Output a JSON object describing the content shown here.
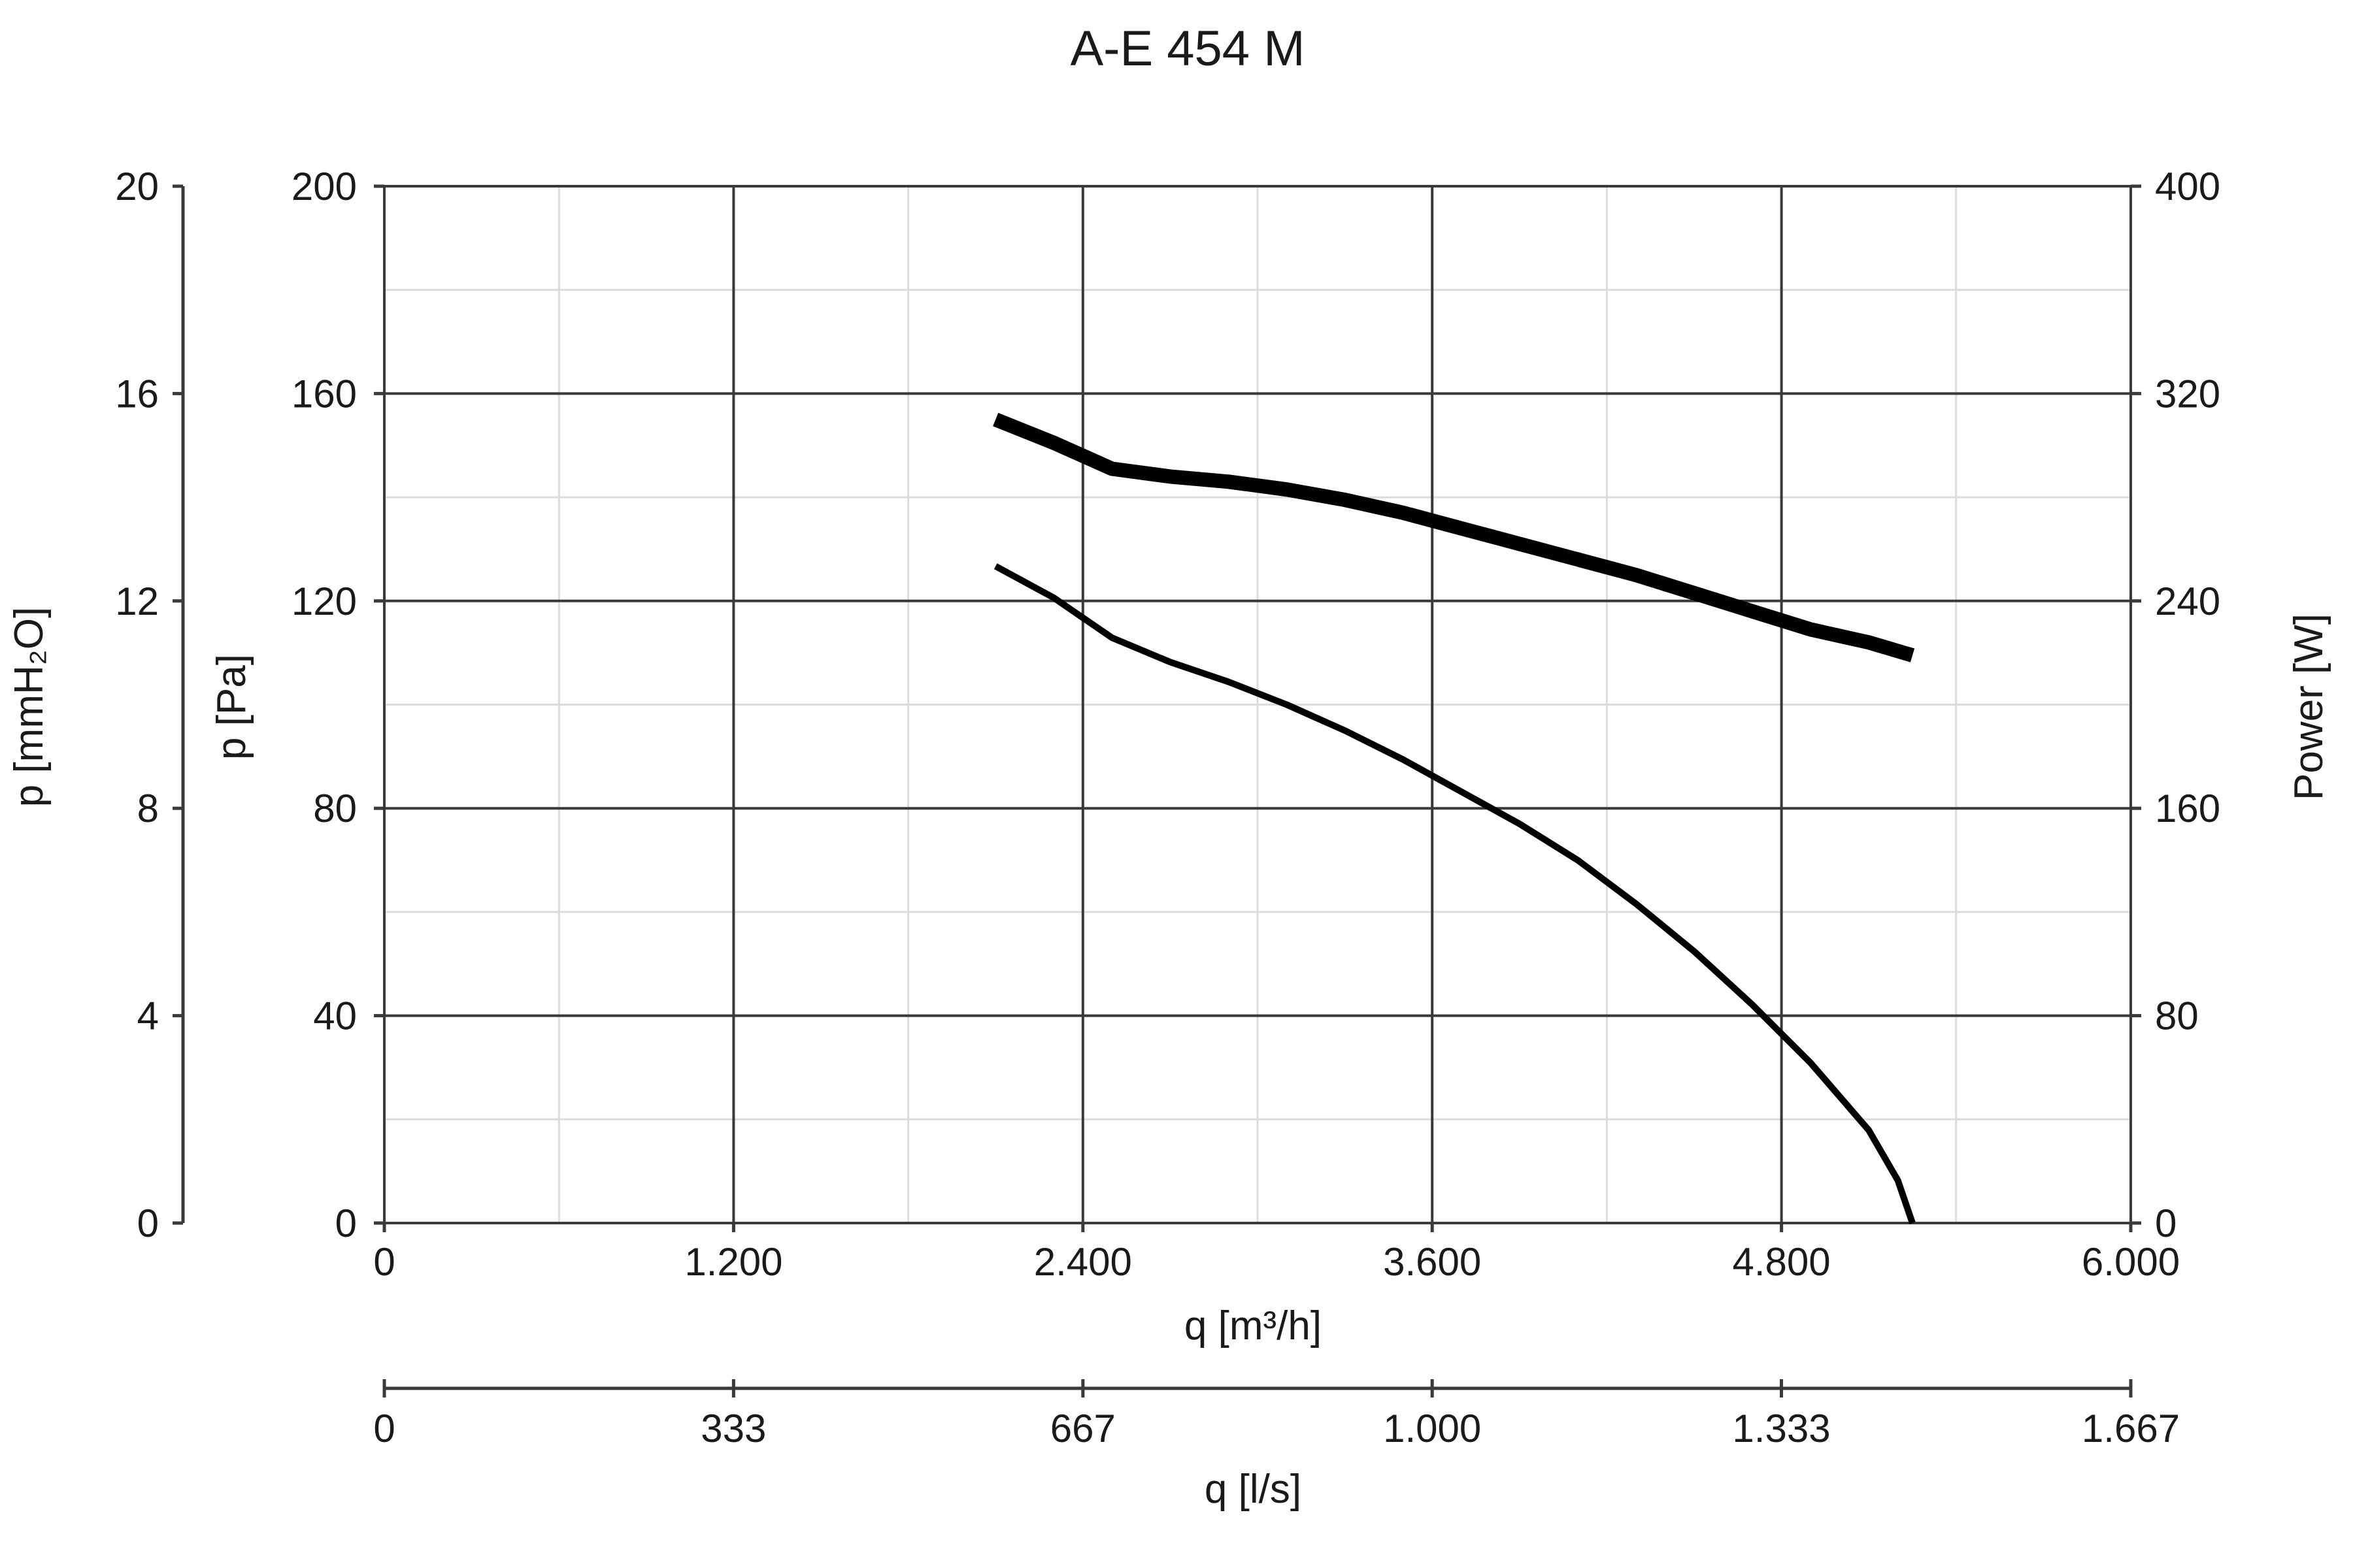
{
  "chart_data": {
    "type": "line",
    "title": "A-E 454 M",
    "xlabel": "q [m³/h]",
    "xlabel_secondary": "q [l/s]",
    "ylabel": "p [Pa]",
    "ylabel_outer": "p [mmH₂O]",
    "ylabel_right": "Power [W]",
    "xlim": [
      0,
      6000
    ],
    "ylim": [
      0,
      200
    ],
    "ylim_outer": [
      0,
      20
    ],
    "ylim_right": [
      0,
      400
    ],
    "grid": true,
    "x_ticks": [
      0,
      1200,
      2400,
      3600,
      4800,
      6000
    ],
    "x_tick_labels": [
      "0",
      "1.200",
      "2.400",
      "3.600",
      "4.800",
      "6.000"
    ],
    "x2_ticks": [
      0,
      333.3,
      666.7,
      1000,
      1333.3,
      1666.7
    ],
    "x2_tick_labels": [
      "0",
      "333",
      "667",
      "1.000",
      "1.333",
      "1.667"
    ],
    "y_ticks": [
      0,
      40,
      80,
      120,
      160,
      200
    ],
    "y_tick_labels": [
      "0",
      "40",
      "80",
      "120",
      "160",
      "200"
    ],
    "y_outer_ticks": [
      0,
      4,
      8,
      12,
      16,
      20
    ],
    "y_outer_tick_labels": [
      "0",
      "4",
      "8",
      "12",
      "16",
      "20"
    ],
    "y_right_ticks": [
      0,
      80,
      160,
      240,
      320,
      400
    ],
    "y_right_tick_labels": [
      "0",
      "80",
      "160",
      "240",
      "320",
      "400"
    ],
    "series": [
      {
        "axis": "left",
        "points": [
          [
            2100,
            126.7
          ],
          [
            2300,
            120.6
          ],
          [
            2500,
            112.9
          ],
          [
            2700,
            108.2
          ],
          [
            2900,
            104.4
          ],
          [
            3100,
            100.0
          ],
          [
            3300,
            95.0
          ],
          [
            3500,
            89.4
          ],
          [
            3700,
            83.2
          ],
          [
            3900,
            77.0
          ],
          [
            4100,
            70.0
          ],
          [
            4300,
            61.6
          ],
          [
            4500,
            52.4
          ],
          [
            4700,
            42.1
          ],
          [
            4900,
            30.9
          ],
          [
            5100,
            17.9
          ],
          [
            5200,
            8.2
          ],
          [
            5250,
            0
          ]
        ]
      },
      {
        "axis": "right",
        "points": [
          [
            2100,
            310
          ],
          [
            2300,
            301
          ],
          [
            2500,
            291
          ],
          [
            2700,
            288
          ],
          [
            2900,
            286
          ],
          [
            3100,
            283
          ],
          [
            3300,
            279
          ],
          [
            3500,
            274
          ],
          [
            3700,
            268
          ],
          [
            3900,
            262
          ],
          [
            4100,
            256
          ],
          [
            4300,
            250
          ],
          [
            4500,
            243
          ],
          [
            4700,
            236
          ],
          [
            4900,
            229
          ],
          [
            5100,
            224
          ],
          [
            5250,
            219
          ]
        ]
      }
    ]
  }
}
